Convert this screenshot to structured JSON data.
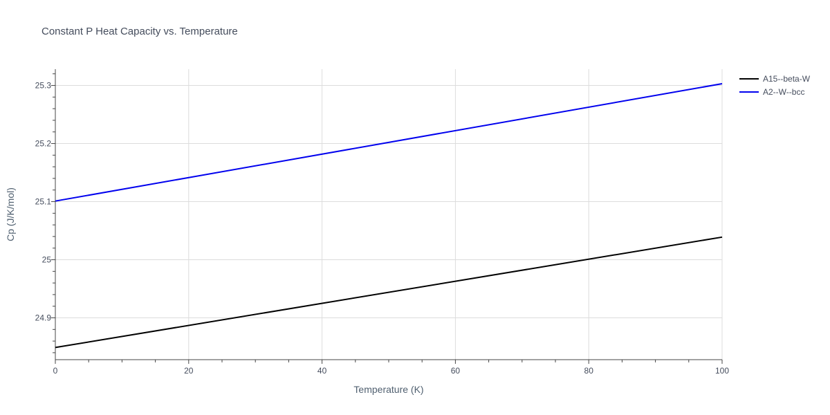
{
  "chart_data": {
    "type": "line",
    "title": "Constant P Heat Capacity vs. Temperature",
    "xlabel": "Temperature (K)",
    "ylabel": "Cp (J/K/mol)",
    "xlim": [
      0,
      100
    ],
    "ylim": [
      24.828,
      25.328
    ],
    "x_ticks": [
      0,
      20,
      40,
      60,
      80,
      100
    ],
    "x_tick_labels": [
      "0",
      "20",
      "40",
      "60",
      "80",
      "100"
    ],
    "y_ticks": [
      24.9,
      25.0,
      25.1,
      25.2,
      25.3
    ],
    "y_tick_labels": [
      "24.9",
      "25",
      "25.1",
      "25.2",
      "25.3"
    ],
    "grid": true,
    "legend_position": "top-right",
    "series": [
      {
        "name": "A15--beta-W",
        "color": "#000000",
        "x": [
          0,
          100
        ],
        "y": [
          24.849,
          25.039
        ]
      },
      {
        "name": "A2--W--bcc",
        "color": "#0000ee",
        "x": [
          0,
          100
        ],
        "y": [
          25.101,
          25.303
        ]
      }
    ]
  }
}
